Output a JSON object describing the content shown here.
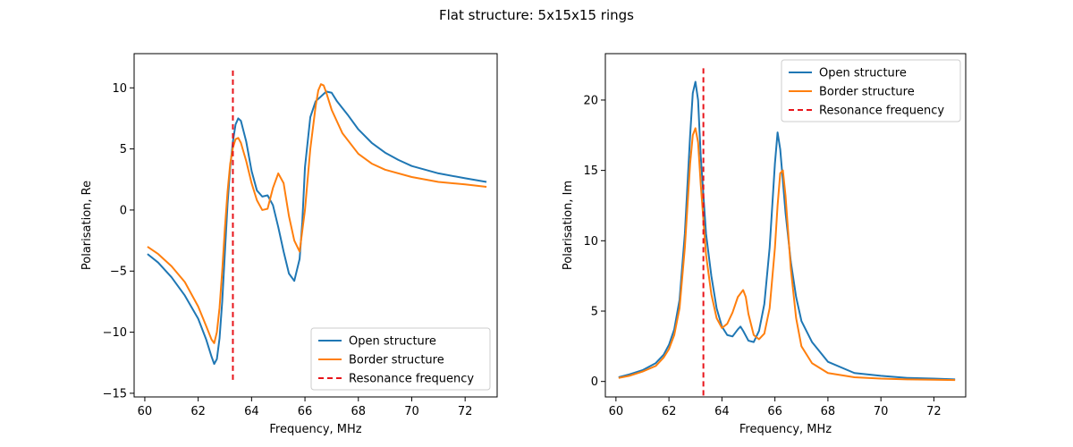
{
  "figure_title": "Flat structure: 5x15x15 rings",
  "colors": {
    "open": "#1f77b4",
    "border": "#ff7f0e",
    "resonance": "#e8141a"
  },
  "chart_data": [
    {
      "type": "line",
      "xlabel": "Frequency, MHz",
      "ylabel": "Polarisation, Re",
      "xlim": [
        59.6,
        73.2
      ],
      "ylim": [
        -15.3,
        12.8
      ],
      "xticks": [
        60,
        62,
        64,
        66,
        68,
        70,
        72
      ],
      "yticks": [
        -15,
        -10,
        -5,
        0,
        5,
        10
      ],
      "legend_position": "lower-right",
      "resonance_frequency": {
        "x": 63.3,
        "y_range": [
          -13.9,
          11.6
        ]
      },
      "series": [
        {
          "name": "Open structure",
          "color": "#1f77b4",
          "x": [
            60.1,
            60.5,
            61.0,
            61.5,
            62.0,
            62.3,
            62.5,
            62.6,
            62.7,
            62.8,
            62.9,
            63.0,
            63.1,
            63.2,
            63.3,
            63.4,
            63.5,
            63.6,
            63.8,
            64.0,
            64.2,
            64.4,
            64.6,
            64.8,
            65.0,
            65.2,
            65.4,
            65.6,
            65.8,
            65.9,
            66.0,
            66.2,
            66.4,
            66.6,
            66.8,
            67.0,
            67.2,
            67.6,
            68.0,
            68.5,
            69.0,
            69.5,
            70.0,
            71.0,
            72.0,
            72.8
          ],
          "y": [
            -3.6,
            -4.3,
            -5.5,
            -7.0,
            -8.9,
            -10.6,
            -12.0,
            -12.6,
            -12.2,
            -10.5,
            -7.5,
            -3.5,
            0.5,
            3.5,
            5.6,
            7.0,
            7.5,
            7.3,
            5.6,
            3.2,
            1.6,
            1.1,
            1.2,
            0.4,
            -1.4,
            -3.4,
            -5.2,
            -5.8,
            -4.0,
            -1.0,
            3.5,
            7.6,
            8.9,
            9.3,
            9.7,
            9.6,
            8.9,
            7.8,
            6.6,
            5.5,
            4.7,
            4.1,
            3.6,
            3.0,
            2.6,
            2.3
          ]
        },
        {
          "name": "Border structure",
          "color": "#ff7f0e",
          "x": [
            60.1,
            60.5,
            61.0,
            61.5,
            62.0,
            62.3,
            62.5,
            62.6,
            62.7,
            62.8,
            62.9,
            63.0,
            63.1,
            63.2,
            63.3,
            63.4,
            63.5,
            63.6,
            63.8,
            64.0,
            64.2,
            64.4,
            64.6,
            64.8,
            65.0,
            65.2,
            65.4,
            65.6,
            65.8,
            66.0,
            66.2,
            66.4,
            66.5,
            66.6,
            66.7,
            66.8,
            67.0,
            67.4,
            68.0,
            68.5,
            69.0,
            70.0,
            71.0,
            72.0,
            72.8
          ],
          "y": [
            -3.0,
            -3.6,
            -4.6,
            -5.9,
            -7.9,
            -9.5,
            -10.6,
            -10.9,
            -10.0,
            -8.0,
            -5.0,
            -1.5,
            1.5,
            3.8,
            5.1,
            5.8,
            5.9,
            5.5,
            4.0,
            2.2,
            0.8,
            0.0,
            0.1,
            1.8,
            3.0,
            2.2,
            -0.5,
            -2.5,
            -3.4,
            0.0,
            5.0,
            8.5,
            9.8,
            10.3,
            10.2,
            9.6,
            8.2,
            6.3,
            4.6,
            3.8,
            3.3,
            2.7,
            2.3,
            2.1,
            1.9
          ]
        }
      ]
    },
    {
      "type": "line",
      "xlabel": "Frequency, MHz",
      "ylabel": "Polarisation, Im",
      "xlim": [
        59.6,
        73.2
      ],
      "ylim": [
        -1.1,
        23.3
      ],
      "xticks": [
        60,
        62,
        64,
        66,
        68,
        70,
        72
      ],
      "yticks": [
        0,
        5,
        10,
        15,
        20
      ],
      "legend_position": "upper-right",
      "resonance_frequency": {
        "x": 63.3,
        "y_range": [
          -1.0,
          22.4
        ]
      },
      "series": [
        {
          "name": "Open structure",
          "color": "#1f77b4",
          "x": [
            60.1,
            60.5,
            61.0,
            61.5,
            61.8,
            62.0,
            62.2,
            62.4,
            62.6,
            62.8,
            62.9,
            63.0,
            63.1,
            63.2,
            63.4,
            63.6,
            63.8,
            64.0,
            64.2,
            64.4,
            64.6,
            64.7,
            64.8,
            65.0,
            65.2,
            65.4,
            65.6,
            65.8,
            66.0,
            66.1,
            66.2,
            66.4,
            66.6,
            66.8,
            67.0,
            67.4,
            68.0,
            69.0,
            70.0,
            71.0,
            72.0,
            72.8
          ],
          "y": [
            0.3,
            0.5,
            0.8,
            1.3,
            1.9,
            2.6,
            3.7,
            5.8,
            10.5,
            17.5,
            20.5,
            21.3,
            20.0,
            16.0,
            10.5,
            7.5,
            5.2,
            3.9,
            3.3,
            3.2,
            3.7,
            3.9,
            3.6,
            2.9,
            2.8,
            3.6,
            5.5,
            9.5,
            15.5,
            17.7,
            16.5,
            12.0,
            8.5,
            6.0,
            4.3,
            2.8,
            1.4,
            0.6,
            0.4,
            0.25,
            0.2,
            0.15
          ]
        },
        {
          "name": "Border structure",
          "color": "#ff7f0e",
          "x": [
            60.1,
            60.5,
            61.0,
            61.5,
            61.8,
            62.0,
            62.2,
            62.4,
            62.6,
            62.8,
            62.9,
            63.0,
            63.1,
            63.2,
            63.4,
            63.6,
            63.8,
            64.0,
            64.2,
            64.4,
            64.6,
            64.8,
            64.9,
            65.0,
            65.2,
            65.4,
            65.6,
            65.8,
            66.0,
            66.1,
            66.2,
            66.3,
            66.4,
            66.6,
            66.8,
            67.0,
            67.4,
            68.0,
            69.0,
            70.0,
            71.0,
            72.0,
            72.8
          ],
          "y": [
            0.25,
            0.4,
            0.7,
            1.1,
            1.7,
            2.3,
            3.3,
            5.2,
            9.5,
            15.5,
            17.5,
            18.0,
            17.0,
            14.0,
            9.0,
            6.2,
            4.5,
            3.8,
            4.1,
            4.9,
            6.0,
            6.5,
            6.0,
            4.8,
            3.3,
            3.0,
            3.4,
            5.2,
            9.5,
            12.5,
            14.8,
            15.0,
            13.2,
            8.0,
            4.5,
            2.5,
            1.3,
            0.6,
            0.3,
            0.2,
            0.15,
            0.12,
            0.1
          ]
        }
      ]
    }
  ],
  "legend_labels": [
    "Open structure",
    "Border structure",
    "Resonance frequency"
  ]
}
